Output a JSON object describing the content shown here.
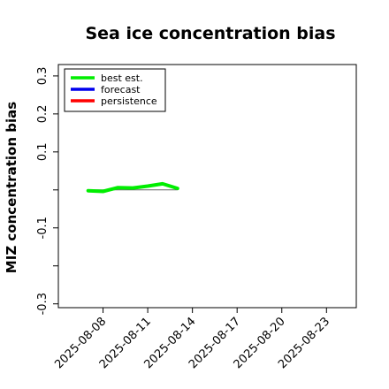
{
  "chart_data": {
    "type": "line",
    "title": "Sea ice concentration bias",
    "ylabel": "MIZ concentration bias",
    "xlabel": "",
    "ylim": [
      -0.31,
      0.33
    ],
    "xlim": [
      "2025-08-05",
      "2025-08-25"
    ],
    "yticks": [
      -0.3,
      -0.2,
      -0.1,
      0.0,
      0.1,
      0.2,
      0.3
    ],
    "ytick_labels": [
      "-0.3",
      "",
      "-0.1",
      "",
      "0.1",
      "0.2",
      "0.3"
    ],
    "xticks": [
      "2025-08-08",
      "2025-08-11",
      "2025-08-14",
      "2025-08-17",
      "2025-08-20",
      "2025-08-23"
    ],
    "xtick_labels": [
      "2025-08-08",
      "2025-08-11",
      "2025-08-14",
      "2025-08-17",
      "2025-08-20",
      "2025-08-23"
    ],
    "highlighted_tick": "2025-08-14",
    "highlight_color": "#228b22",
    "zero_line": true,
    "grid": false,
    "legend_position": "top-left",
    "series": [
      {
        "name": "best est.",
        "color": "#00ee00",
        "x": [
          "2025-08-07",
          "2025-08-08",
          "2025-08-09",
          "2025-08-10",
          "2025-08-11",
          "2025-08-12",
          "2025-08-13"
        ],
        "y": [
          -0.002,
          -0.004,
          0.006,
          0.005,
          0.01,
          0.016,
          0.004
        ]
      },
      {
        "name": "forecast",
        "color": "#0000ee",
        "x": [],
        "y": []
      },
      {
        "name": "persistence",
        "color": "#ff0000",
        "x": [],
        "y": []
      }
    ]
  }
}
